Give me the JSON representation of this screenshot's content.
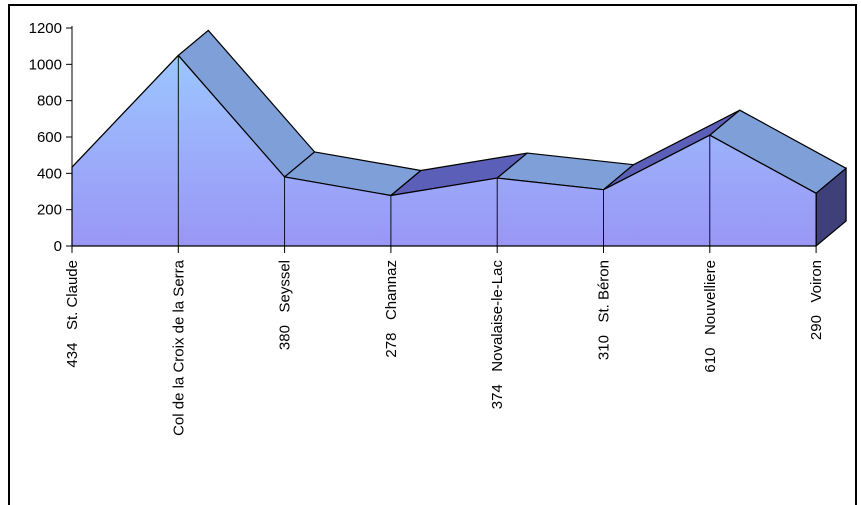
{
  "chart_data": {
    "type": "area",
    "title": "",
    "xlabel": "",
    "ylabel": "",
    "ylim": [
      0,
      1200
    ],
    "yticks": [
      "0",
      "200",
      "400",
      "600",
      "800",
      "1000",
      "1200"
    ],
    "categories": [
      "434   St. Claude",
      "Col de la Croix de la Serra",
      "380   Seyssel",
      "278   Channaz",
      "374   Novalaise-le-Lac",
      "310   St. Béron",
      "610   Nouvelliere",
      "290   Voiron"
    ],
    "values": [
      434,
      1049,
      380,
      278,
      374,
      310,
      610,
      290
    ],
    "style": "3d-area",
    "colors": {
      "front_top": "#9cc6ff",
      "front_bottom": "#9a96f5",
      "top_face_light": "#7e9fd8",
      "top_face_dark": "#5c5fb8",
      "side_face": "#3f3f7a"
    }
  }
}
